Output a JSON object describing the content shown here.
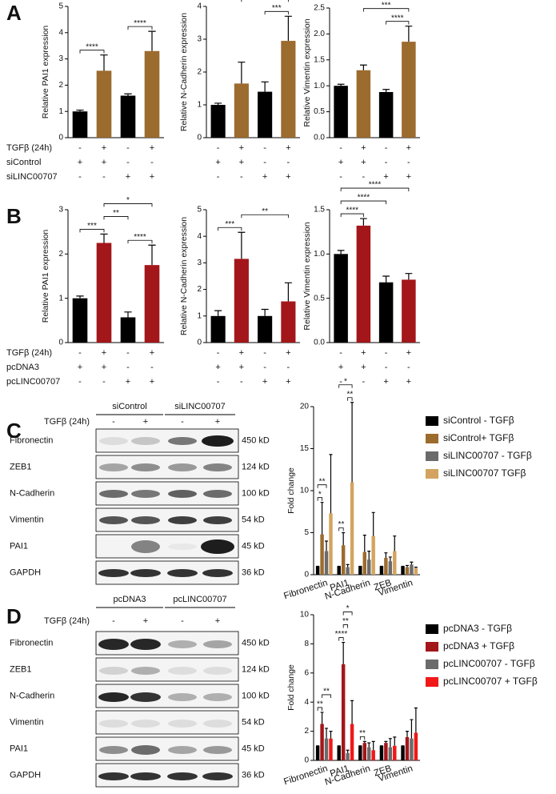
{
  "panels": [
    "A",
    "B",
    "C",
    "D"
  ],
  "conditions": [
    {
      "rows": [
        {
          "label": "TGFβ (24h)",
          "signs": [
            "-",
            "+",
            "-",
            "+"
          ]
        },
        {
          "label": "siControl",
          "signs": [
            "+",
            "+",
            "-",
            "-"
          ]
        },
        {
          "label": "siLINC00707",
          "signs": [
            "-",
            "-",
            "+",
            "+"
          ]
        }
      ]
    },
    {
      "rows": [
        {
          "label": "TGFβ (24h)",
          "signs": [
            "-",
            "+",
            "-",
            "+"
          ]
        },
        {
          "label": "pcDNA3",
          "signs": [
            "+",
            "+",
            "-",
            "-"
          ]
        },
        {
          "label": "pcLINC00707",
          "signs": [
            "-",
            "-",
            "+",
            "+"
          ]
        }
      ]
    }
  ],
  "blots": [
    {
      "groups": [
        "siControl",
        "siLINC00707"
      ],
      "treatment_label": "TGFβ (24h)",
      "treatment": [
        "-",
        "+",
        "-",
        "+"
      ],
      "rows": [
        {
          "name": "Fibronectin",
          "size": "450 kD"
        },
        {
          "name": "ZEB1",
          "size": "124 kD"
        },
        {
          "name": "N-Cadherin",
          "size": "100 kD"
        },
        {
          "name": "Vimentin",
          "size": "54 kD"
        },
        {
          "name": "PAI1",
          "size": "45 kD"
        },
        {
          "name": "GAPDH",
          "size": "36 kD"
        }
      ]
    },
    {
      "groups": [
        "pcDNA3",
        "pcLINC00707"
      ],
      "treatment_label": "TGFβ (24h)",
      "treatment": [
        "-",
        "+",
        "-",
        "+"
      ],
      "rows": [
        {
          "name": "Fibronectin",
          "size": "450 kD"
        },
        {
          "name": "ZEB1",
          "size": "124 kD"
        },
        {
          "name": "N-Cadherin",
          "size": "100 kD"
        },
        {
          "name": "Vimentin",
          "size": "54 kD"
        },
        {
          "name": "PAI1",
          "size": "45 kD"
        },
        {
          "name": "GAPDH",
          "size": "36 kD"
        }
      ]
    }
  ],
  "chart_data": [
    {
      "type": "bar",
      "y_label": "Relative PAI1 expression",
      "values": [
        1.0,
        2.55,
        1.6,
        3.3
      ],
      "errors": [
        0.05,
        0.6,
        0.07,
        0.75
      ],
      "colors": [
        "#000000",
        "#9c6b2e",
        "#000000",
        "#9c6b2e"
      ],
      "ylim": [
        0,
        5
      ],
      "yticks": [
        0,
        1,
        2,
        3,
        4,
        5
      ],
      "annotations": [
        {
          "text": "****",
          "between": [
            0,
            1
          ]
        },
        {
          "text": "****",
          "between": [
            2,
            3
          ]
        }
      ]
    },
    {
      "type": "bar",
      "y_label": "Relative N-Cadherin expression",
      "values": [
        1.0,
        1.65,
        1.4,
        2.95
      ],
      "errors": [
        0.05,
        0.65,
        0.3,
        0.75
      ],
      "colors": [
        "#000000",
        "#9c6b2e",
        "#000000",
        "#9c6b2e"
      ],
      "ylim": [
        0,
        4
      ],
      "yticks": [
        0,
        1,
        2,
        3,
        4
      ],
      "annotations": [
        {
          "text": "***",
          "between": [
            2,
            3
          ]
        },
        {
          "text": "**",
          "between": [
            1,
            3
          ]
        }
      ]
    },
    {
      "type": "bar",
      "y_label": "Relative Vimentin expression",
      "values": [
        1.0,
        1.3,
        0.88,
        1.85
      ],
      "errors": [
        0.03,
        0.1,
        0.05,
        0.3
      ],
      "colors": [
        "#000000",
        "#9c6b2e",
        "#000000",
        "#9c6b2e"
      ],
      "ylim": [
        0,
        2.5
      ],
      "yticks": [
        {
          "value": 0,
          "label": "0.0"
        },
        0.5,
        {
          "value": 1,
          "label": "1.0"
        },
        1.5,
        {
          "value": 2,
          "label": "2.0"
        },
        2.5
      ],
      "annotations": [
        {
          "text": "****",
          "between": [
            2,
            3
          ]
        },
        {
          "text": "***",
          "between": [
            1,
            3
          ]
        }
      ]
    },
    {
      "type": "bar",
      "y_label": "Relative PAI1 expression",
      "values": [
        1.0,
        2.25,
        0.57,
        1.75
      ],
      "errors": [
        0.05,
        0.2,
        0.12,
        0.45
      ],
      "colors": [
        "#000000",
        "#a3161a",
        "#000000",
        "#a3161a"
      ],
      "ylim": [
        0,
        3
      ],
      "yticks": [
        0,
        1,
        2,
        3
      ],
      "annotations": [
        {
          "text": "****",
          "between": [
            2,
            3
          ]
        },
        {
          "text": "***",
          "between": [
            0,
            1
          ]
        },
        {
          "text": "**",
          "between": [
            1,
            2
          ]
        },
        {
          "text": "*",
          "between": [
            1,
            3
          ]
        }
      ]
    },
    {
      "type": "bar",
      "y_label": "Relative N-Cadherin expression",
      "values": [
        1.0,
        3.15,
        1.0,
        1.55
      ],
      "errors": [
        0.2,
        1.0,
        0.25,
        0.7
      ],
      "colors": [
        "#000000",
        "#a3161a",
        "#000000",
        "#a3161a"
      ],
      "ylim": [
        0,
        5
      ],
      "yticks": [
        0,
        1,
        2,
        3,
        4,
        5
      ],
      "annotations": [
        {
          "text": "***",
          "between": [
            0,
            1
          ]
        },
        {
          "text": "**",
          "between": [
            1,
            3
          ]
        }
      ]
    },
    {
      "type": "bar",
      "y_label": "Relative Vimentin expression",
      "values": [
        1.0,
        1.32,
        0.68,
        0.71
      ],
      "errors": [
        0.04,
        0.08,
        0.07,
        0.07
      ],
      "colors": [
        "#000000",
        "#a3161a",
        "#000000",
        "#a3161a"
      ],
      "ylim": [
        0,
        1.5
      ],
      "yticks": [
        {
          "value": 0,
          "label": "0.0"
        },
        0.5,
        {
          "value": 1,
          "label": "1.0"
        },
        1.5
      ],
      "annotations": [
        {
          "text": "****",
          "between": [
            0,
            1
          ]
        },
        {
          "text": "****",
          "between": [
            0,
            2
          ]
        },
        {
          "text": "****",
          "between": [
            0,
            3
          ]
        }
      ]
    },
    {
      "type": "grouped_bar",
      "y_label": "Fold change",
      "categories": [
        "Fibronectin",
        "PAI1",
        "N-Cadherin",
        "ZEB",
        "Vimentin"
      ],
      "ylim": [
        0,
        20
      ],
      "yticks": [
        0,
        5,
        10,
        15,
        20
      ],
      "series": [
        {
          "name": "siControl - TGFβ",
          "color": "#000000",
          "values": [
            1,
            1,
            1,
            1,
            1
          ],
          "errors": [
            0,
            0,
            0,
            0,
            0
          ]
        },
        {
          "name": "siControl+ TGFβ",
          "color": "#9c6b2e",
          "values": [
            4.8,
            3.5,
            2.7,
            2.0,
            0.9
          ],
          "errors": [
            3.8,
            1.5,
            2.0,
            0.6,
            0.2
          ]
        },
        {
          "name": "siLINC00707 - TGFβ",
          "color": "#6b6b6b",
          "values": [
            2.8,
            0.9,
            1.8,
            1.6,
            1.2
          ],
          "errors": [
            1.2,
            0.3,
            1.0,
            0.5,
            0.3
          ]
        },
        {
          "name": "siLINC00707  TGFβ",
          "color": "#d3a460",
          "values": [
            7.3,
            11.0,
            4.6,
            2.8,
            0.8
          ],
          "errors": [
            7.0,
            9.5,
            2.8,
            1.8,
            0.1
          ]
        }
      ],
      "annotations": [
        {
          "text": "*",
          "category": 0,
          "between": [
            0,
            1
          ]
        },
        {
          "text": "**",
          "category": 0,
          "between": [
            0,
            2
          ]
        },
        {
          "text": "**",
          "category": 1,
          "between": [
            0,
            1
          ]
        },
        {
          "text": "**",
          "category": 1,
          "between": [
            2,
            3
          ]
        },
        {
          "text": "*",
          "category": 1,
          "between": [
            0,
            3
          ]
        }
      ]
    },
    {
      "type": "grouped_bar",
      "y_label": "Fold change",
      "categories": [
        "Fibronectin",
        "PAI1",
        "N-Cadherin",
        "ZEB",
        "Vimentin"
      ],
      "ylim": [
        0,
        10
      ],
      "yticks": [
        0,
        2,
        4,
        6,
        8,
        10
      ],
      "series": [
        {
          "name": "pcDNA3 - TGFβ",
          "color": "#000000",
          "values": [
            1,
            1,
            1,
            1,
            1
          ],
          "errors": [
            0,
            0,
            0,
            0,
            0
          ]
        },
        {
          "name": "pcDNA3 + TGFβ",
          "color": "#a3161a",
          "values": [
            2.5,
            6.6,
            1.2,
            1.2,
            1.6
          ],
          "errors": [
            0.8,
            1.5,
            0.1,
            0.1,
            0.4
          ]
        },
        {
          "name": "pcLINC00707 - TGFβ",
          "color": "#6b6b6b",
          "values": [
            1.5,
            0.5,
            0.9,
            0.9,
            1.5
          ],
          "errors": [
            0.7,
            0.2,
            0.3,
            0.6,
            1.3
          ]
        },
        {
          "name": "pcLINC00707 + TGFβ",
          "color": "#f01818",
          "values": [
            1.5,
            2.5,
            0.7,
            1.0,
            1.9
          ],
          "errors": [
            0.5,
            1.6,
            0.6,
            0.6,
            1.7
          ]
        }
      ],
      "annotations": [
        {
          "text": "**",
          "category": 0,
          "between": [
            0,
            1
          ]
        },
        {
          "text": "**",
          "category": 0,
          "between": [
            1,
            3
          ]
        },
        {
          "text": "****",
          "category": 1,
          "between": [
            0,
            1
          ]
        },
        {
          "text": "**",
          "category": 1,
          "between": [
            1,
            2
          ]
        },
        {
          "text": "*",
          "category": 1,
          "between": [
            1,
            3
          ]
        },
        {
          "text": "**",
          "category": 2,
          "between": [
            0,
            1
          ]
        }
      ]
    }
  ]
}
